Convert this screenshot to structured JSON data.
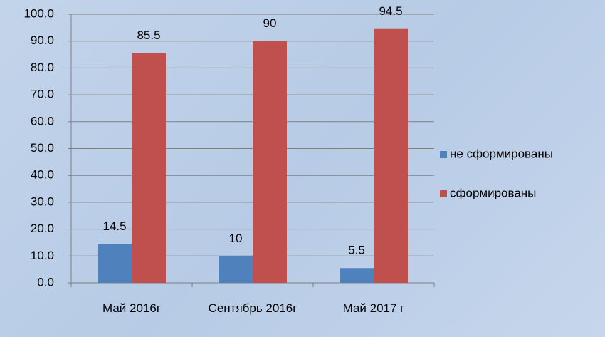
{
  "chart_data": {
    "type": "bar",
    "categories": [
      "Май 2016г",
      "Сентябрь 2016г",
      "Май 2017 г"
    ],
    "series": [
      {
        "name": "не сформированы",
        "color": "#4f81bd",
        "values": [
          14.5,
          10,
          5.5
        ]
      },
      {
        "name": "сформированы",
        "color": "#c0504d",
        "values": [
          85.5,
          90,
          94.5
        ]
      }
    ],
    "ylim": [
      0,
      100
    ],
    "yticks": [
      {
        "value": 0,
        "label": "0.0"
      },
      {
        "value": 10,
        "label": "10.0"
      },
      {
        "value": 20,
        "label": "20.0"
      },
      {
        "value": 30,
        "label": "30.0"
      },
      {
        "value": 40,
        "label": "40.0"
      },
      {
        "value": 50,
        "label": "50.0"
      },
      {
        "value": 60,
        "label": "60.0"
      },
      {
        "value": 70,
        "label": "70.0"
      },
      {
        "value": 80,
        "label": "80.0"
      },
      {
        "value": 90,
        "label": "90.0"
      },
      {
        "value": 100,
        "label": "100.0"
      }
    ],
    "grid": true,
    "legend": "right"
  }
}
